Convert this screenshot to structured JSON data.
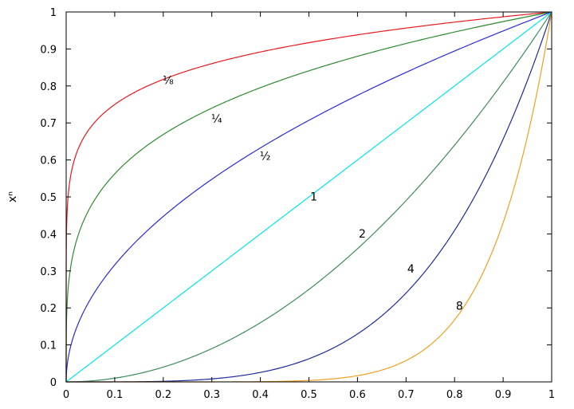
{
  "chart_data": {
    "type": "line",
    "title": "",
    "xlabel": "",
    "ylabel": "xⁿ",
    "xlim": [
      0,
      1
    ],
    "ylim": [
      0,
      1
    ],
    "xticks": [
      "0",
      "0.1",
      "0.2",
      "0.3",
      "0.4",
      "0.5",
      "0.6",
      "0.7",
      "0.8",
      "0.9",
      "1"
    ],
    "yticks": [
      "0",
      "0.1",
      "0.2",
      "0.3",
      "0.4",
      "0.5",
      "0.6",
      "0.7",
      "0.8",
      "0.9",
      "1"
    ],
    "grid": false,
    "legend": "none",
    "function": "y = x^n",
    "series": [
      {
        "exponent": 0.125,
        "label": "⅛",
        "color": "#e41a1c",
        "label_at": [
          0.21,
          0.805
        ]
      },
      {
        "exponent": 0.25,
        "label": "¼",
        "color": "#2e8b2e",
        "label_at": [
          0.31,
          0.7
        ]
      },
      {
        "exponent": 0.5,
        "label": "½",
        "color": "#2b2bd6",
        "label_at": [
          0.41,
          0.6
        ]
      },
      {
        "exponent": 1,
        "label": "1",
        "color": "#00e5ee",
        "label_at": [
          0.51,
          0.49
        ]
      },
      {
        "exponent": 2,
        "label": "2",
        "color": "#3c8c5a",
        "label_at": [
          0.61,
          0.39
        ]
      },
      {
        "exponent": 4,
        "label": "4",
        "color": "#1f2a9c",
        "label_at": [
          0.71,
          0.295
        ]
      },
      {
        "exponent": 8,
        "label": "8",
        "color": "#f0a020",
        "label_at": [
          0.81,
          0.195
        ]
      }
    ]
  }
}
